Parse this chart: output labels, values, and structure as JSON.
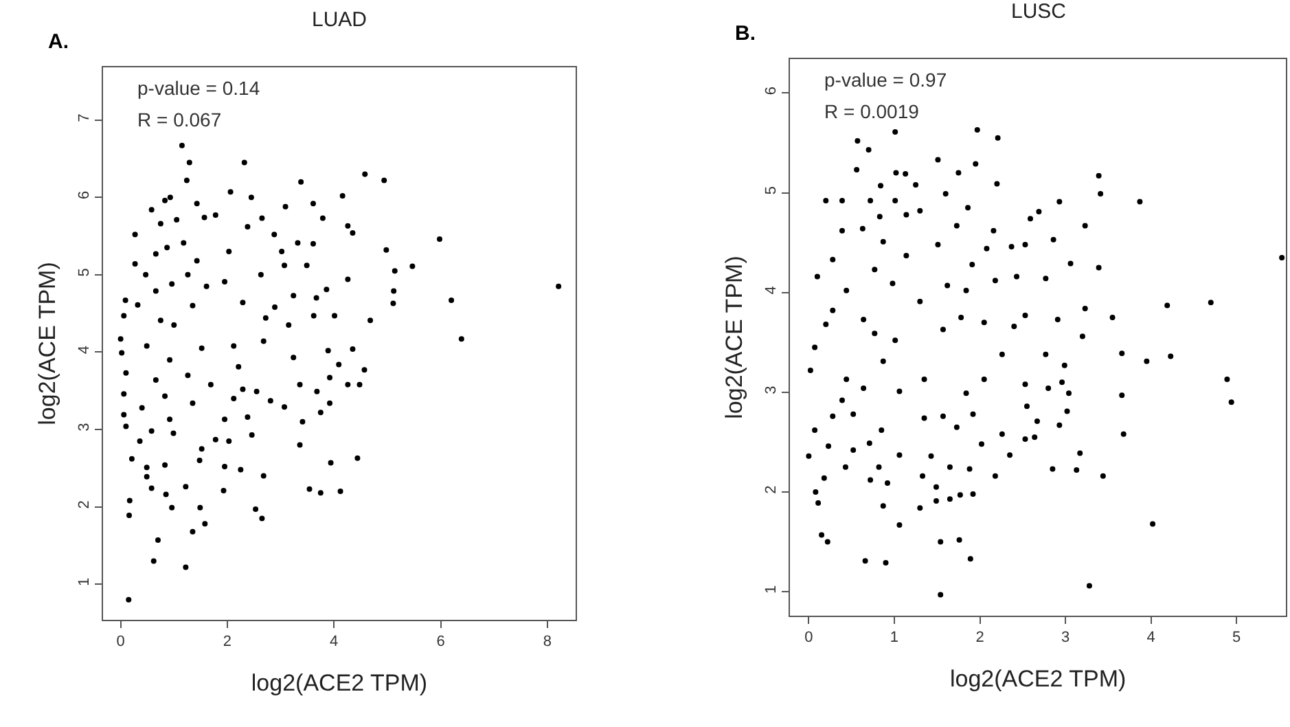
{
  "chart_data": [
    {
      "type": "scatter",
      "title": "LUAD",
      "xlabel": "log2(ACE2 TPM)",
      "ylabel": "log2(ACE TPM)",
      "annotations": [
        "A.",
        "p-value = 0.14",
        "R = 0.067"
      ],
      "color": "#000000",
      "marker": "circle",
      "xlim": [
        -0.33,
        8.53
      ],
      "ylim": [
        0.54,
        7.68
      ],
      "xticks": [
        0,
        2,
        4,
        6,
        8
      ],
      "yticks": [
        1,
        2,
        3,
        4,
        5,
        6,
        7
      ],
      "x": [
        1.15,
        1.29,
        2.32,
        1.24,
        4.58,
        4.94,
        3.38,
        2.06,
        2.45,
        4.16,
        0.83,
        0.93,
        1.43,
        3.61,
        3.09,
        0.58,
        1.57,
        1.78,
        2.65,
        3.79,
        1.05,
        0.75,
        4.26,
        2.38,
        0.27,
        2.88,
        4.35,
        5.98,
        1.18,
        0.87,
        3.32,
        3.61,
        4.98,
        2.03,
        0.66,
        3.02,
        0.27,
        1.43,
        3.07,
        3.49,
        5.47,
        5.14,
        2.63,
        0.47,
        1.26,
        4.26,
        1.95,
        0.96,
        8.21,
        1.61,
        3.86,
        5.12,
        0.66,
        3.24,
        0.09,
        6.2,
        5.11,
        3.67,
        2.29,
        0.32,
        1.35,
        2.89,
        4.01,
        3.62,
        4.68,
        2.72,
        0.06,
        0.75,
        1.0,
        3.15,
        0.0,
        6.39,
        2.68,
        2.12,
        0.49,
        1.52,
        3.89,
        4.35,
        0.02,
        3.24,
        0.92,
        4.09,
        2.21,
        4.57,
        0.1,
        3.92,
        1.26,
        0.66,
        4.26,
        4.48,
        1.69,
        2.29,
        2.55,
        3.36,
        3.68,
        0.06,
        0.83,
        2.12,
        2.81,
        1.35,
        0.4,
        3.07,
        3.92,
        3.75,
        0.06,
        2.38,
        3.41,
        0.92,
        1.95,
        0.1,
        0.99,
        0.58,
        2.46,
        1.78,
        0.36,
        2.03,
        3.36,
        1.52,
        4.44,
        0.21,
        1.48,
        3.94,
        0.49,
        2.25,
        1.95,
        0.83,
        2.68,
        0.49,
        1.22,
        0.58,
        1.93,
        3.54,
        3.75,
        4.12,
        0.85,
        0.17,
        0.96,
        1.49,
        2.53,
        2.65,
        0.16,
        1.58,
        1.35,
        0.7,
        0.62,
        1.22,
        0.15
      ],
      "values": [
        6.67,
        6.45,
        6.45,
        6.22,
        6.3,
        6.22,
        6.2,
        6.07,
        6.0,
        6.02,
        5.96,
        6.0,
        5.92,
        5.92,
        5.88,
        5.84,
        5.74,
        5.77,
        5.73,
        5.73,
        5.71,
        5.66,
        5.63,
        5.62,
        5.52,
        5.52,
        5.54,
        5.46,
        5.41,
        5.35,
        5.41,
        5.4,
        5.32,
        5.3,
        5.27,
        5.3,
        5.14,
        5.18,
        5.12,
        5.12,
        5.11,
        5.05,
        5.0,
        5.0,
        5.0,
        4.94,
        4.91,
        4.88,
        4.85,
        4.85,
        4.81,
        4.79,
        4.79,
        4.73,
        4.67,
        4.67,
        4.63,
        4.7,
        4.64,
        4.61,
        4.6,
        4.58,
        4.47,
        4.47,
        4.41,
        4.44,
        4.47,
        4.41,
        4.35,
        4.35,
        4.17,
        4.17,
        4.14,
        4.08,
        4.08,
        4.05,
        4.02,
        4.04,
        3.99,
        3.93,
        3.9,
        3.84,
        3.81,
        3.77,
        3.73,
        3.67,
        3.7,
        3.64,
        3.58,
        3.58,
        3.58,
        3.52,
        3.49,
        3.58,
        3.49,
        3.46,
        3.43,
        3.4,
        3.37,
        3.34,
        3.28,
        3.29,
        3.34,
        3.22,
        3.19,
        3.16,
        3.1,
        3.13,
        3.13,
        3.04,
        2.95,
        2.98,
        2.93,
        2.87,
        2.85,
        2.85,
        2.8,
        2.75,
        2.63,
        2.62,
        2.6,
        2.57,
        2.51,
        2.48,
        2.52,
        2.54,
        2.4,
        2.39,
        2.26,
        2.24,
        2.21,
        2.23,
        2.18,
        2.2,
        2.16,
        2.08,
        1.99,
        1.99,
        1.97,
        1.85,
        1.89,
        1.78,
        1.68,
        1.57,
        1.3,
        1.22,
        0.8
      ]
    },
    {
      "type": "scatter",
      "title": "LUSC",
      "xlabel": "log2(ACE2 TPM)",
      "ylabel": "log2(ACE TPM)",
      "annotations": [
        "B.",
        "p-value = 0.97",
        "R = 0.0019"
      ],
      "color": "#000000",
      "marker": "circle",
      "xlim": [
        -0.22,
        5.58
      ],
      "ylim": [
        0.76,
        6.34
      ],
      "xticks": [
        0,
        1,
        2,
        3,
        4,
        5
      ],
      "yticks": [
        1,
        2,
        3,
        4,
        5,
        6
      ],
      "x": [
        0.57,
        0.7,
        1.01,
        1.97,
        2.21,
        1.51,
        1.95,
        0.56,
        1.75,
        1.02,
        1.13,
        3.39,
        2.2,
        0.84,
        3.41,
        1.6,
        1.25,
        3.87,
        0.2,
        0.39,
        2.93,
        0.72,
        1.01,
        1.86,
        1.3,
        2.69,
        1.14,
        0.83,
        2.59,
        3.23,
        0.63,
        0.39,
        1.73,
        2.16,
        2.86,
        0.87,
        1.51,
        2.53,
        2.08,
        2.37,
        1.14,
        0.28,
        5.53,
        3.06,
        3.39,
        0.77,
        1.91,
        0.1,
        2.43,
        2.77,
        2.18,
        0.98,
        1.62,
        1.84,
        0.44,
        4.19,
        4.7,
        1.3,
        3.23,
        0.28,
        3.55,
        2.91,
        1.78,
        2.05,
        0.64,
        2.53,
        0.2,
        2.4,
        3.2,
        1.01,
        0.77,
        1.57,
        0.07,
        3.66,
        4.23,
        2.77,
        2.26,
        3.95,
        2.99,
        0.87,
        0.02,
        0.44,
        1.35,
        4.89,
        2.05,
        2.53,
        2.96,
        0.64,
        2.8,
        1.06,
        1.84,
        3.66,
        3.04,
        4.94,
        0.39,
        2.55,
        0.28,
        0.52,
        1.92,
        1.35,
        3.02,
        1.57,
        2.67,
        0.85,
        1.73,
        0.07,
        2.93,
        3.68,
        2.26,
        2.64,
        2.53,
        2.02,
        0.71,
        0.23,
        0.52,
        2.35,
        1.06,
        0.0,
        3.17,
        1.43,
        0.82,
        0.43,
        1.65,
        2.85,
        3.13,
        1.88,
        3.44,
        2.18,
        0.18,
        1.33,
        0.72,
        0.92,
        1.49,
        0.08,
        1.77,
        1.92,
        1.65,
        1.49,
        0.11,
        1.3,
        0.87,
        4.02,
        1.06,
        0.15,
        0.22,
        1.76,
        1.54,
        1.89,
        0.66,
        0.9,
        3.28,
        1.54
      ],
      "values": [
        5.52,
        5.43,
        5.61,
        5.63,
        5.55,
        5.33,
        5.29,
        5.23,
        5.2,
        5.2,
        5.19,
        5.17,
        5.09,
        5.07,
        4.99,
        4.99,
        5.08,
        4.91,
        4.92,
        4.92,
        4.91,
        4.92,
        4.92,
        4.85,
        4.82,
        4.81,
        4.78,
        4.76,
        4.74,
        4.67,
        4.64,
        4.62,
        4.67,
        4.62,
        4.53,
        4.51,
        4.48,
        4.48,
        4.44,
        4.46,
        4.37,
        4.33,
        4.35,
        4.29,
        4.25,
        4.23,
        4.28,
        4.16,
        4.16,
        4.14,
        4.12,
        4.09,
        4.07,
        4.02,
        4.02,
        3.87,
        3.9,
        3.91,
        3.84,
        3.82,
        3.75,
        3.73,
        3.75,
        3.7,
        3.73,
        3.77,
        3.68,
        3.66,
        3.56,
        3.52,
        3.59,
        3.63,
        3.45,
        3.39,
        3.36,
        3.38,
        3.38,
        3.31,
        3.27,
        3.31,
        3.22,
        3.13,
        3.13,
        3.13,
        3.13,
        3.08,
        3.1,
        3.04,
        3.04,
        3.01,
        2.99,
        2.97,
        2.99,
        2.9,
        2.92,
        2.86,
        2.76,
        2.78,
        2.78,
        2.74,
        2.81,
        2.76,
        2.71,
        2.62,
        2.65,
        2.62,
        2.67,
        2.58,
        2.58,
        2.55,
        2.53,
        2.48,
        2.49,
        2.46,
        2.42,
        2.37,
        2.37,
        2.36,
        2.39,
        2.36,
        2.25,
        2.25,
        2.25,
        2.23,
        2.22,
        2.23,
        2.16,
        2.16,
        2.14,
        2.16,
        2.12,
        2.09,
        2.05,
        2.0,
        1.97,
        1.98,
        1.93,
        1.91,
        1.89,
        1.84,
        1.86,
        1.68,
        1.67,
        1.57,
        1.5,
        1.52,
        1.5,
        1.33,
        1.31,
        1.29,
        1.06,
        0.97
      ]
    }
  ]
}
